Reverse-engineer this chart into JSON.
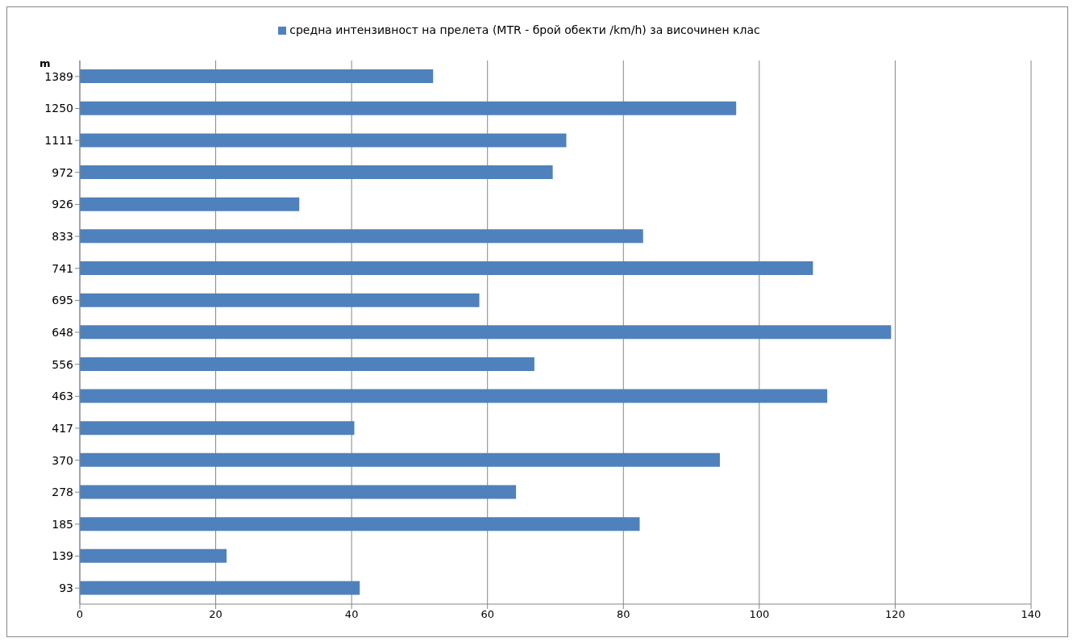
{
  "chart_data": {
    "type": "bar",
    "orientation": "horizontal",
    "ylabel": "m",
    "categories": [
      "1389",
      "1250",
      "1111",
      "972",
      "926",
      "833",
      "741",
      "695",
      "648",
      "556",
      "463",
      "417",
      "370",
      "278",
      "185",
      "139",
      "93"
    ],
    "series": [
      {
        "name": "средна интензивност на прелета (MTR - брой обекти /km/h) за височинен клас",
        "color": "#4f81bd",
        "values": [
          52.0,
          96.6,
          71.6,
          69.6,
          32.3,
          82.9,
          107.9,
          58.8,
          119.4,
          66.9,
          110.0,
          40.4,
          94.2,
          64.2,
          82.4,
          21.6,
          41.2
        ]
      }
    ],
    "xlim": [
      0,
      140
    ],
    "xticks": [
      0,
      20,
      40,
      60,
      80,
      100,
      120,
      140
    ],
    "grid": "x",
    "legend": "top"
  }
}
